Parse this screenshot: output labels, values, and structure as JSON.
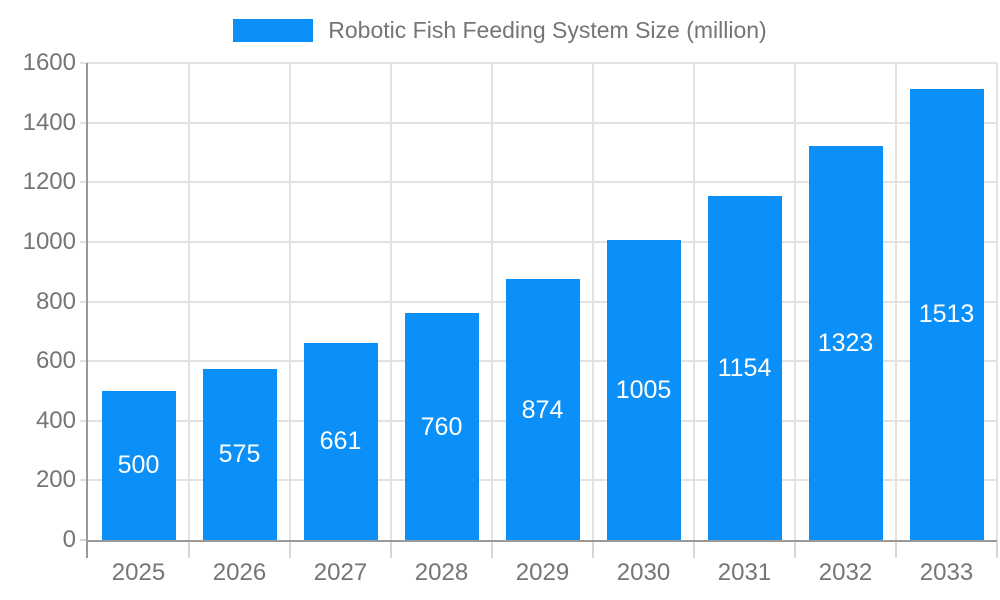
{
  "chart_data": {
    "type": "bar",
    "title": "Robotic Fish Feeding System Size (million)",
    "categories": [
      "2025",
      "2026",
      "2027",
      "2028",
      "2029",
      "2030",
      "2031",
      "2032",
      "2033"
    ],
    "values": [
      500,
      575,
      661,
      760,
      874,
      1005,
      1154,
      1323,
      1513
    ],
    "xlabel": "",
    "ylabel": "",
    "ylim": [
      0,
      1600
    ],
    "yticks": [
      0,
      200,
      400,
      600,
      800,
      1000,
      1200,
      1400,
      1600
    ],
    "grid": true,
    "legend_position": "top",
    "bar_labels_inside": true,
    "colors": {
      "bar": "#0A90F8",
      "bar_label": "#FFFFFF",
      "axis_line": "#999999",
      "grid_line": "#E2E2E2",
      "tick_line": "#D6D6D6",
      "text": "#757575"
    }
  }
}
